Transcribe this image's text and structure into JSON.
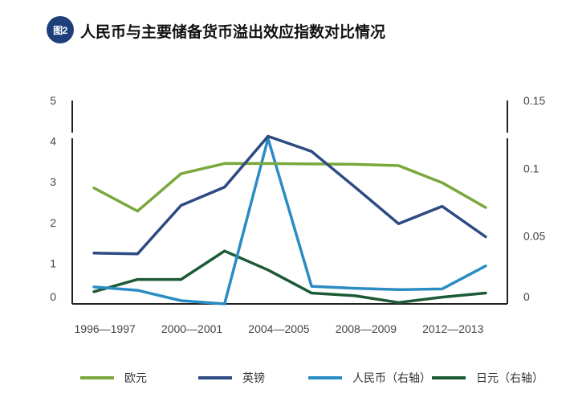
{
  "figure": {
    "badge": "图2",
    "title": "人民币与主要储备货币溢出效应指数对比情况"
  },
  "chart_data": {
    "type": "line",
    "title": "人民币与主要储备货币溢出效应指数对比情况",
    "x_tick_labels": [
      "1996—1997",
      "2000—2001",
      "2004—2005",
      "2008—2009",
      "2012—2013"
    ],
    "left_axis": {
      "ylim": [
        0,
        5
      ],
      "ticks": [
        "0",
        "1",
        "2",
        "3",
        "4",
        "5"
      ]
    },
    "right_axis": {
      "ylim": [
        0,
        0.15
      ],
      "ticks": [
        "0",
        "0.05",
        "0.1",
        "0.15"
      ]
    },
    "x": [
      1996.5,
      1998.5,
      2000.5,
      2002.5,
      2004.5,
      2006.5,
      2008.5,
      2010.5,
      2012.5,
      2014.5
    ],
    "series": [
      {
        "name": "欧元",
        "axis": "left",
        "color": "#7aa83c",
        "values": [
          2.85,
          2.28,
          3.2,
          3.45,
          3.45,
          3.44,
          3.43,
          3.4,
          2.98,
          2.37
        ]
      },
      {
        "name": "英镑",
        "axis": "left",
        "color": "#2e4a82",
        "values": [
          1.25,
          1.23,
          2.42,
          2.87,
          4.12,
          3.75,
          2.87,
          1.97,
          2.4,
          1.65
        ]
      },
      {
        "name": "人民币（右轴）",
        "axis": "right",
        "color": "#2b8cc4",
        "values": [
          0.0125,
          0.01,
          0.0024,
          0.0,
          0.122,
          0.013,
          0.0115,
          0.0105,
          0.011,
          0.028
        ]
      },
      {
        "name": "日元（右轴）",
        "axis": "right",
        "color": "#1c5a35",
        "values": [
          0.009,
          0.018,
          0.018,
          0.039,
          0.025,
          0.008,
          0.006,
          0.001,
          0.005,
          0.008
        ]
      }
    ],
    "legend": [
      "欧元",
      "英镑",
      "人民币（右轴）",
      "日元（右轴）"
    ]
  }
}
